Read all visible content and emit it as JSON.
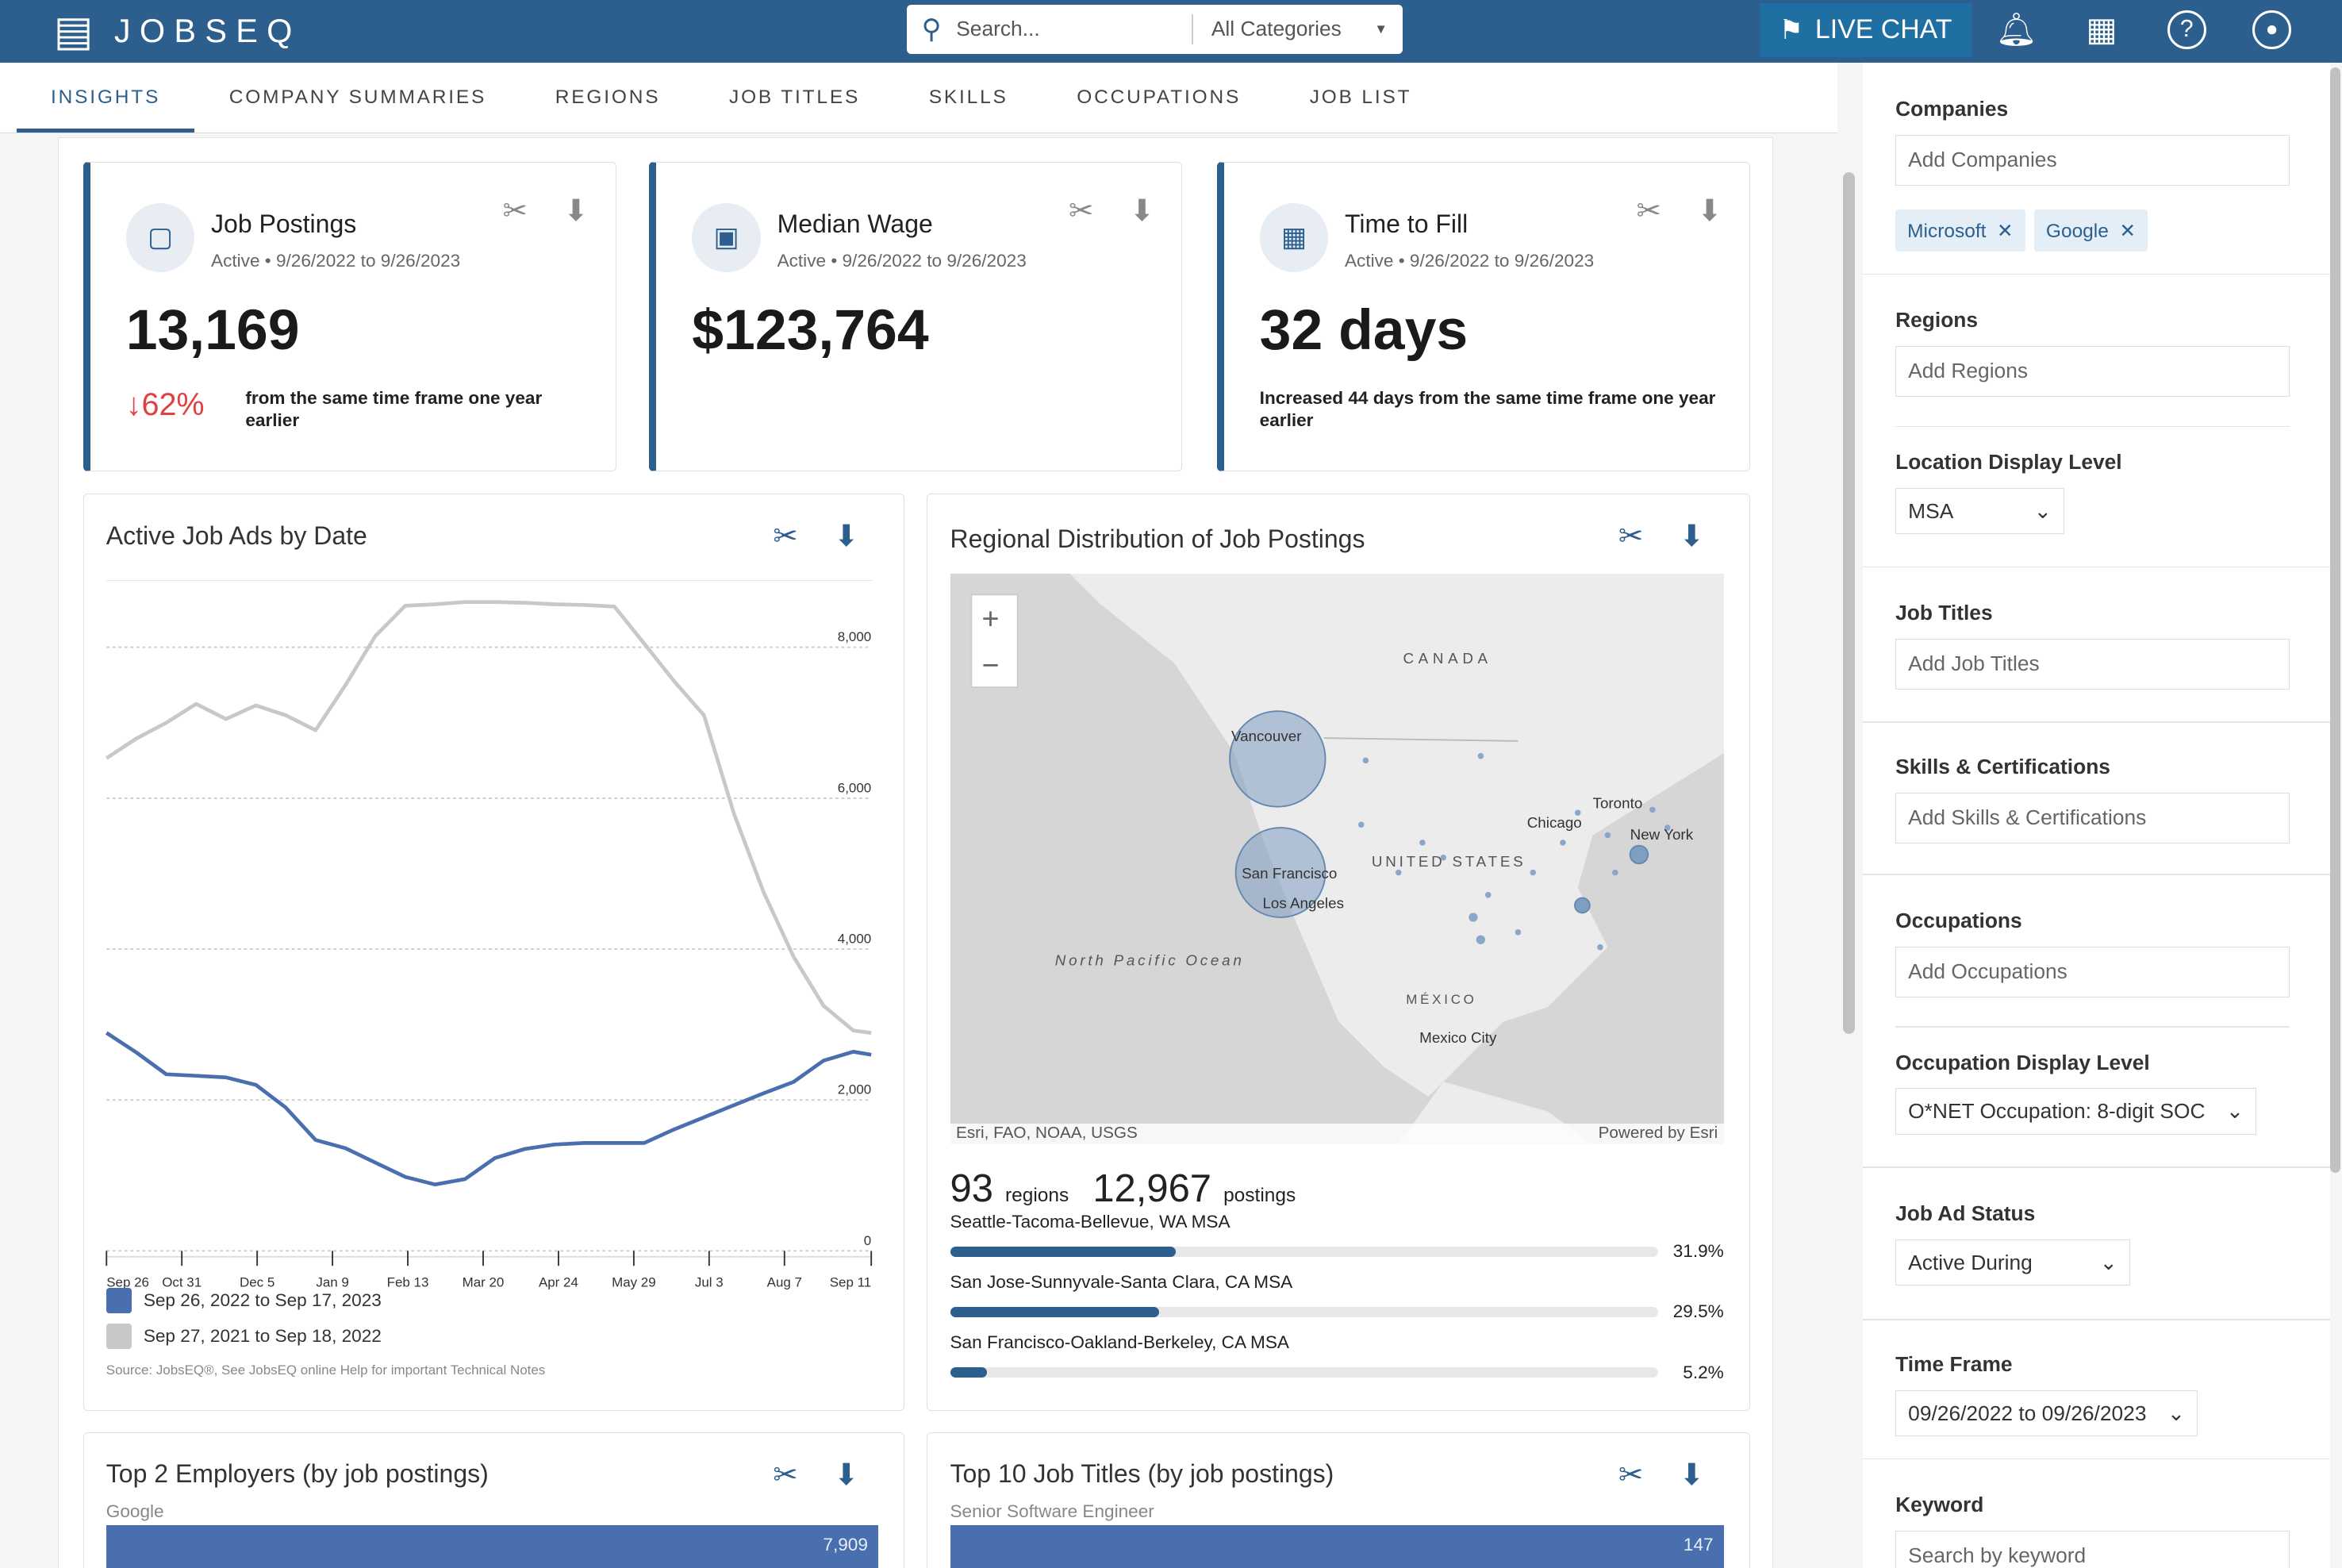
{
  "app": {
    "logo": "JOBSEQ",
    "search_placeholder": "Search...",
    "category": "All Categories",
    "live_chat": "LIVE CHAT"
  },
  "nav": [
    "INSIGHTS",
    "COMPANY SUMMARIES",
    "REGIONS",
    "JOB TITLES",
    "SKILLS",
    "OCCUPATIONS",
    "JOB LIST"
  ],
  "kpis": [
    {
      "title": "Job Postings",
      "sub": "Active • 9/26/2022 to 9/26/2023",
      "value": "13,169",
      "change": "↓62%",
      "note": "from the same time frame one year earlier",
      "icon": "briefcase-icon"
    },
    {
      "title": "Median Wage",
      "sub": "Active • 9/26/2022 to 9/26/2023",
      "value": "$123,764",
      "icon": "money-icon"
    },
    {
      "title": "Time to Fill",
      "sub": "Active • 9/26/2022 to 9/26/2023",
      "value": "32 days",
      "note": "Increased 44 days from the same time frame one year earlier",
      "icon": "calendar-icon"
    }
  ],
  "colors": {
    "brand": "#2c5f8d",
    "current": "#4a6fae",
    "prior": "#c8c8c8",
    "down": "#e04040"
  },
  "chart_data": {
    "type": "line",
    "title": "Active Job Ads by Date",
    "x": [
      "Sep 26",
      "Oct 10",
      "Oct 24",
      "Nov 7",
      "Nov 21",
      "Dec 5",
      "Dec 19",
      "Jan 2",
      "Jan 16",
      "Jan 30",
      "Feb 13",
      "Feb 27",
      "Mar 13",
      "Mar 27",
      "Apr 10",
      "Apr 24",
      "May 8",
      "May 22",
      "Jun 5",
      "Jun 19",
      "Jul 3",
      "Jul 17",
      "Jul 31",
      "Aug 14",
      "Aug 28",
      "Sep 11",
      "Sep 17"
    ],
    "xticks": [
      "Sep 26",
      "Oct 31",
      "Dec 5",
      "Jan 9",
      "Feb 13",
      "Mar 20",
      "Apr 24",
      "May 29",
      "Jul 3",
      "Aug 7",
      "Sep 11"
    ],
    "yticks": [
      "0",
      "2,000",
      "4,000",
      "6,000",
      "8,000"
    ],
    "ylim": [
      0,
      8000
    ],
    "grid": true,
    "legend": "bottom",
    "series": [
      {
        "name": "Sep 26, 2022 to Sep 17, 2023",
        "values": [
          2890,
          2630,
          2340,
          2320,
          2300,
          2200,
          1900,
          1470,
          1360,
          1170,
          980,
          880,
          950,
          1230,
          1350,
          1410,
          1430,
          1430,
          1430,
          1610,
          1770,
          1930,
          2090,
          2240,
          2520,
          2640,
          2600
        ]
      },
      {
        "name": "Sep 27, 2021 to Sep 18, 2022",
        "values": [
          6530,
          6790,
          7000,
          7250,
          7050,
          7230,
          7100,
          6900,
          7500,
          8150,
          8550,
          8570,
          8600,
          8600,
          8590,
          8570,
          8560,
          8540,
          8050,
          7550,
          7100,
          5800,
          4750,
          3900,
          3250,
          2920,
          2890
        ]
      }
    ],
    "source": "Source: JobsEQ®, See JobsEQ online Help for important Technical Notes"
  },
  "map": {
    "title": "Regional Distribution of Job Postings",
    "labels": [
      "CANADA",
      "UNITED STATES",
      "MÉXICO",
      "North Pacific Ocean",
      "Vancouver",
      "San Francisco",
      "Los Angeles",
      "Chicago",
      "Toronto",
      "New York",
      "Mexico City"
    ],
    "attribution": "Esri, FAO, NOAA, USGS",
    "powered": "Powered by Esri",
    "regions": "93",
    "regions_label": "regions",
    "postings": "12,967",
    "postings_label": "postings",
    "rows": [
      {
        "name": "Seattle-Tacoma-Bellevue, WA MSA",
        "pct": "31.9%",
        "value": 31.9
      },
      {
        "name": "San Jose-Sunnyvale-Santa Clara, CA MSA",
        "pct": "29.5%",
        "value": 29.5
      },
      {
        "name": "San Francisco-Oakland-Berkeley, CA MSA",
        "pct": "5.2%",
        "value": 5.2
      }
    ]
  },
  "employers": {
    "title": "Top 2 Employers (by job postings)",
    "first": "Google",
    "first_value": "7,909"
  },
  "jobtitles": {
    "title": "Top 10 Job Titles (by job postings)",
    "first": "Senior Software Engineer",
    "first_value": "147"
  },
  "side": {
    "companies": "Companies",
    "companies_ph": "Add Companies",
    "chips": [
      "Microsoft",
      "Google"
    ],
    "regions": "Regions",
    "regions_ph": "Add Regions",
    "loc_level": "Location Display Level",
    "loc_value": "MSA",
    "job_titles": "Job Titles",
    "job_titles_ph": "Add Job Titles",
    "skills": "Skills & Certifications",
    "skills_ph": "Add Skills & Certifications",
    "occupations": "Occupations",
    "occupations_ph": "Add Occupations",
    "occ_level": "Occupation Display Level",
    "occ_value": "O*NET Occupation: 8-digit SOC",
    "status": "Job Ad Status",
    "status_value": "Active During",
    "timeframe": "Time Frame",
    "timeframe_value": "09/26/2022 to 09/26/2023",
    "keyword": "Keyword",
    "keyword_ph": "Search by keyword"
  }
}
